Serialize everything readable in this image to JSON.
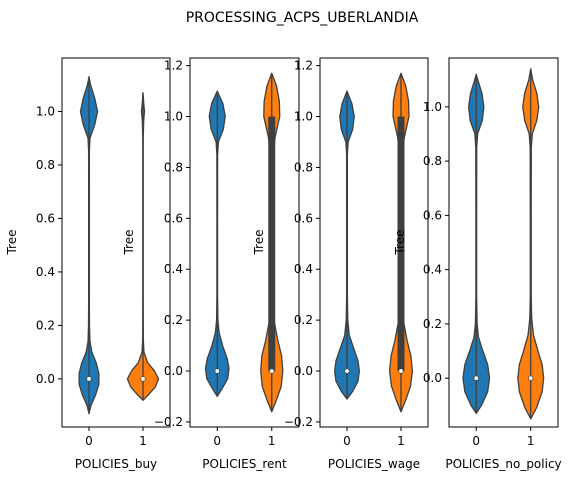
{
  "chart_data": {
    "suptitle": "PROCESSING_ACPS_UBERLANDIA",
    "series_colors": [
      "#1f77b4",
      "#ff7f0e"
    ],
    "line_color": "#3f3f3f",
    "panels": [
      {
        "type": "violin",
        "xlabel": "POLICIES_buy",
        "ylabel": "Tree",
        "categories": [
          "0",
          "1"
        ],
        "ylim": [
          -0.18,
          1.2
        ],
        "yticks": [
          0.0,
          0.2,
          0.4,
          0.6,
          0.8,
          1.0
        ],
        "ytick_labels": [
          "0.0",
          "0.2",
          "0.4",
          "0.6",
          "0.8",
          "1.0"
        ],
        "violins": [
          {
            "category": "0",
            "median": 0.0,
            "q1": 0.0,
            "q3": 0.0,
            "density": [
              [
                -0.13,
                0.0
              ],
              [
                -0.1,
                0.1
              ],
              [
                -0.06,
                0.35
              ],
              [
                -0.02,
                0.52
              ],
              [
                0.02,
                0.52
              ],
              [
                0.06,
                0.38
              ],
              [
                0.1,
                0.15
              ],
              [
                0.14,
                0.05
              ],
              [
                0.2,
                0.025
              ],
              [
                0.3,
                0.018
              ],
              [
                0.5,
                0.018
              ],
              [
                0.7,
                0.018
              ],
              [
                0.85,
                0.02
              ],
              [
                0.9,
                0.05
              ],
              [
                0.95,
                0.3
              ],
              [
                1.0,
                0.45
              ],
              [
                1.05,
                0.3
              ],
              [
                1.1,
                0.08
              ],
              [
                1.13,
                0.0
              ]
            ]
          },
          {
            "category": "1",
            "median": 0.0,
            "q1": 0.0,
            "q3": 0.0,
            "density": [
              [
                -0.08,
                0.0
              ],
              [
                -0.06,
                0.28
              ],
              [
                -0.03,
                0.65
              ],
              [
                0.0,
                0.82
              ],
              [
                0.03,
                0.6
              ],
              [
                0.06,
                0.25
              ],
              [
                0.1,
                0.05
              ],
              [
                0.15,
                0.015
              ],
              [
                0.3,
                0.01
              ],
              [
                0.6,
                0.01
              ],
              [
                0.9,
                0.01
              ],
              [
                0.97,
                0.04
              ],
              [
                1.0,
                0.08
              ],
              [
                1.03,
                0.04
              ],
              [
                1.07,
                0.0
              ]
            ]
          }
        ]
      },
      {
        "type": "violin",
        "xlabel": "POLICIES_rent",
        "ylabel": "Tree",
        "categories": [
          "0",
          "1"
        ],
        "ylim": [
          -0.22,
          1.23
        ],
        "yticks": [
          -0.2,
          0.0,
          0.2,
          0.4,
          0.6,
          0.8,
          1.0,
          1.2
        ],
        "ytick_labels": [
          "−0.2",
          "0.0",
          "0.2",
          "0.4",
          "0.6",
          "0.8",
          "1.0",
          "1.2"
        ],
        "violins": [
          {
            "category": "0",
            "median": 0.0,
            "q1": 0.0,
            "q3": 0.0,
            "density": [
              [
                -0.1,
                0.0
              ],
              [
                -0.07,
                0.25
              ],
              [
                -0.03,
                0.55
              ],
              [
                0.01,
                0.62
              ],
              [
                0.05,
                0.52
              ],
              [
                0.1,
                0.28
              ],
              [
                0.15,
                0.1
              ],
              [
                0.2,
                0.035
              ],
              [
                0.3,
                0.018
              ],
              [
                0.6,
                0.018
              ],
              [
                0.85,
                0.02
              ],
              [
                0.9,
                0.06
              ],
              [
                0.95,
                0.32
              ],
              [
                1.0,
                0.42
              ],
              [
                1.05,
                0.3
              ],
              [
                1.1,
                0.0
              ]
            ]
          },
          {
            "category": "1",
            "median": 0.0,
            "q1": 0.0,
            "q3": 1.0,
            "density": [
              [
                -0.16,
                0.0
              ],
              [
                -0.12,
                0.22
              ],
              [
                -0.06,
                0.5
              ],
              [
                0.0,
                0.58
              ],
              [
                0.06,
                0.52
              ],
              [
                0.12,
                0.32
              ],
              [
                0.2,
                0.12
              ],
              [
                0.3,
                0.05
              ],
              [
                0.5,
                0.04
              ],
              [
                0.7,
                0.04
              ],
              [
                0.85,
                0.06
              ],
              [
                0.92,
                0.18
              ],
              [
                1.0,
                0.42
              ],
              [
                1.06,
                0.4
              ],
              [
                1.12,
                0.25
              ],
              [
                1.17,
                0.0
              ]
            ]
          }
        ]
      },
      {
        "type": "violin",
        "xlabel": "POLICIES_wage",
        "ylabel": "Tree",
        "categories": [
          "0",
          "1"
        ],
        "ylim": [
          -0.22,
          1.23
        ],
        "yticks": [
          -0.2,
          0.0,
          0.2,
          0.4,
          0.6,
          0.8,
          1.0,
          1.2
        ],
        "ytick_labels": [
          "−0.2",
          "0.0",
          "0.2",
          "0.4",
          "0.6",
          "0.8",
          "1.0",
          "1.2"
        ],
        "violins": [
          {
            "category": "0",
            "median": 0.0,
            "q1": 0.0,
            "q3": 0.0,
            "density": [
              [
                -0.11,
                0.0
              ],
              [
                -0.08,
                0.3
              ],
              [
                -0.04,
                0.58
              ],
              [
                0.0,
                0.65
              ],
              [
                0.04,
                0.58
              ],
              [
                0.09,
                0.35
              ],
              [
                0.14,
                0.12
              ],
              [
                0.2,
                0.04
              ],
              [
                0.3,
                0.018
              ],
              [
                0.6,
                0.018
              ],
              [
                0.85,
                0.02
              ],
              [
                0.9,
                0.06
              ],
              [
                0.95,
                0.3
              ],
              [
                1.0,
                0.38
              ],
              [
                1.05,
                0.26
              ],
              [
                1.1,
                0.0
              ]
            ]
          },
          {
            "category": "1",
            "median": 0.0,
            "q1": 0.0,
            "q3": 1.0,
            "density": [
              [
                -0.16,
                0.0
              ],
              [
                -0.12,
                0.22
              ],
              [
                -0.06,
                0.5
              ],
              [
                0.0,
                0.6
              ],
              [
                0.06,
                0.52
              ],
              [
                0.12,
                0.32
              ],
              [
                0.2,
                0.12
              ],
              [
                0.3,
                0.05
              ],
              [
                0.5,
                0.04
              ],
              [
                0.7,
                0.04
              ],
              [
                0.85,
                0.06
              ],
              [
                0.92,
                0.18
              ],
              [
                1.0,
                0.42
              ],
              [
                1.06,
                0.4
              ],
              [
                1.12,
                0.25
              ],
              [
                1.17,
                0.0
              ]
            ]
          }
        ]
      },
      {
        "type": "violin",
        "xlabel": "POLICIES_no_policy",
        "ylabel": "Tree",
        "categories": [
          "0",
          "1"
        ],
        "ylim": [
          -0.18,
          1.18
        ],
        "yticks": [
          0.0,
          0.2,
          0.4,
          0.6,
          0.8,
          1.0
        ],
        "ytick_labels": [
          "0.0",
          "0.2",
          "0.4",
          "0.6",
          "0.8",
          "1.0"
        ],
        "violins": [
          {
            "category": "0",
            "median": 0.0,
            "q1": 0.0,
            "q3": 0.0,
            "density": [
              [
                -0.13,
                0.0
              ],
              [
                -0.1,
                0.28
              ],
              [
                -0.05,
                0.6
              ],
              [
                0.0,
                0.7
              ],
              [
                0.05,
                0.6
              ],
              [
                0.1,
                0.35
              ],
              [
                0.15,
                0.12
              ],
              [
                0.2,
                0.045
              ],
              [
                0.3,
                0.02
              ],
              [
                0.6,
                0.02
              ],
              [
                0.85,
                0.025
              ],
              [
                0.9,
                0.07
              ],
              [
                0.95,
                0.32
              ],
              [
                1.0,
                0.4
              ],
              [
                1.05,
                0.3
              ],
              [
                1.1,
                0.08
              ],
              [
                1.12,
                0.0
              ]
            ]
          },
          {
            "category": "1",
            "median": 0.0,
            "q1": 0.0,
            "q3": 0.0,
            "density": [
              [
                -0.15,
                0.0
              ],
              [
                -0.11,
                0.3
              ],
              [
                -0.05,
                0.6
              ],
              [
                0.0,
                0.68
              ],
              [
                0.05,
                0.6
              ],
              [
                0.1,
                0.38
              ],
              [
                0.16,
                0.14
              ],
              [
                0.22,
                0.05
              ],
              [
                0.3,
                0.025
              ],
              [
                0.6,
                0.025
              ],
              [
                0.85,
                0.03
              ],
              [
                0.9,
                0.08
              ],
              [
                0.95,
                0.32
              ],
              [
                1.0,
                0.42
              ],
              [
                1.05,
                0.32
              ],
              [
                1.1,
                0.1
              ],
              [
                1.14,
                0.0
              ]
            ]
          }
        ]
      }
    ]
  }
}
